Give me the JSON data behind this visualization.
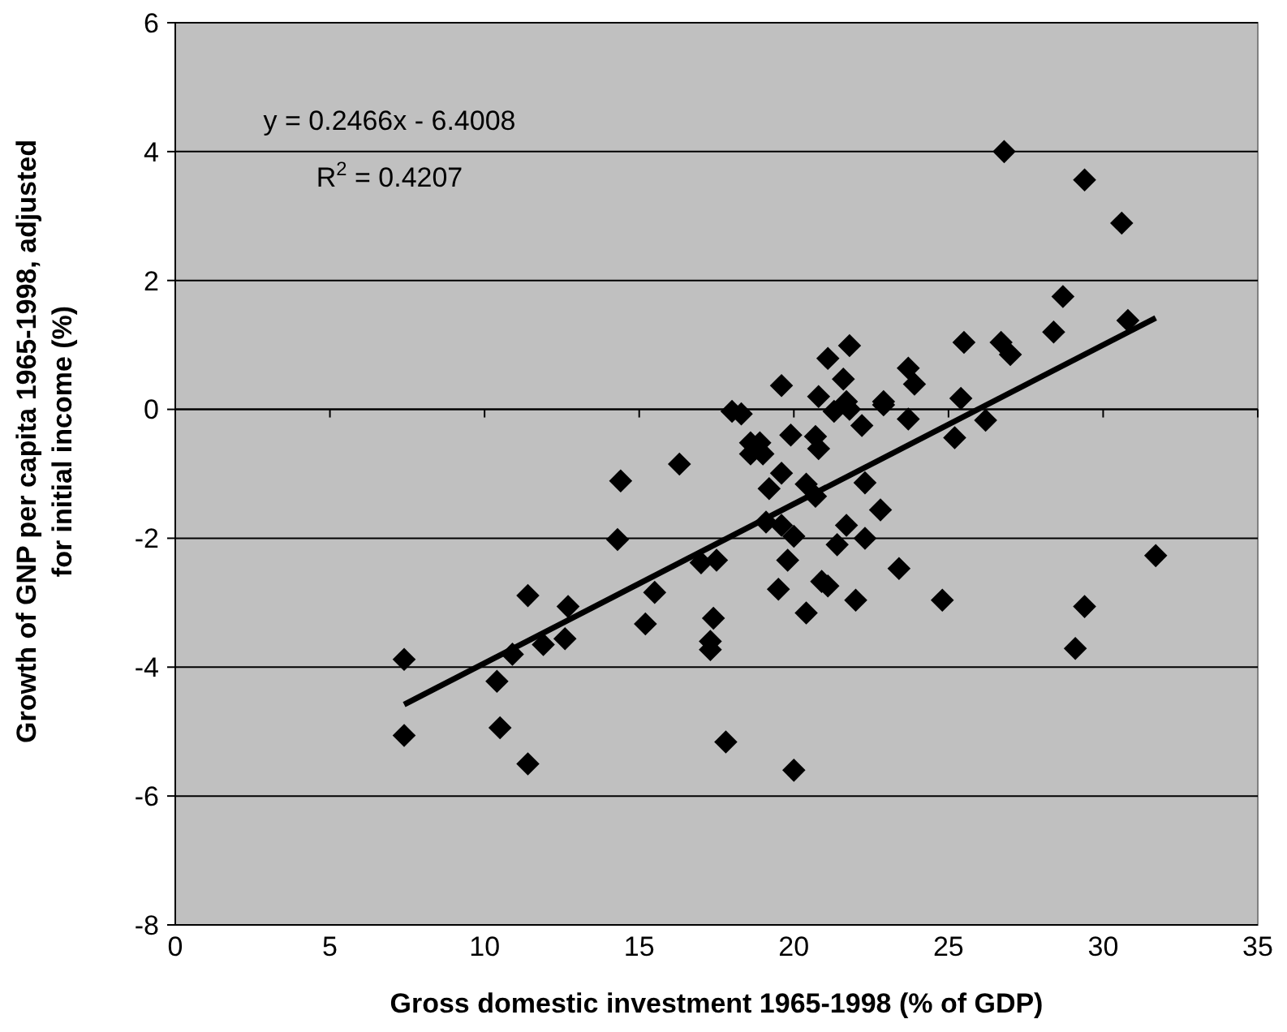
{
  "chart_data": {
    "type": "scatter",
    "xlabel": "Gross domestic investment 1965-1998 (% of GDP)",
    "ylabel": "Growth of GNP per capita 1965-1998, adjusted for initial income (%)",
    "xlim": [
      0,
      35
    ],
    "xticks": [
      0,
      5,
      10,
      15,
      20,
      25,
      30,
      35
    ],
    "ylim": [
      -8,
      6
    ],
    "yticks": [
      -8,
      -6,
      -4,
      -2,
      0,
      2,
      4,
      6
    ],
    "grid": "y",
    "marker": "diamond",
    "annotations": [
      "y = 0.2466x - 6.4008",
      "R$^{2}$ = 0.4207"
    ],
    "series": [
      {
        "color": "#000000",
        "x": [
          7.4,
          7.4,
          10.4,
          10.5,
          10.9,
          11.4,
          11.4,
          11.9,
          12.6,
          12.7,
          14.3,
          14.4,
          15.2,
          15.5,
          16.3,
          17.0,
          17.5,
          17.4,
          17.3,
          17.3,
          17.8,
          18.0,
          18.3,
          18.6,
          18.6,
          18.9,
          19.0,
          19.2,
          19.1,
          19.6,
          19.9,
          19.6,
          19.6,
          20.0,
          19.8,
          19.5,
          20.0,
          20.4,
          20.4,
          20.7,
          20.7,
          20.8,
          20.8,
          21.1,
          20.9,
          21.1,
          21.3,
          21.6,
          21.8,
          21.7,
          21.8,
          22.2,
          21.7,
          21.4,
          22.3,
          22.0,
          22.3,
          22.8,
          22.9,
          26.8,
          29.4,
          30.6,
          28.7,
          28.4,
          30.8,
          25.5,
          26.7,
          27.0,
          23.7,
          23.9,
          22.9,
          25.4,
          23.7,
          26.2,
          25.2,
          23.4,
          24.8,
          31.7,
          29.4,
          29.1
        ],
        "values": [
          -3.88,
          -5.06,
          -4.22,
          -4.94,
          -3.8,
          -2.89,
          -5.5,
          -3.65,
          -3.56,
          -3.06,
          -2.02,
          -1.11,
          -3.33,
          -2.84,
          -0.85,
          -2.38,
          -2.34,
          -3.24,
          -3.6,
          -3.73,
          -5.16,
          -0.03,
          -0.07,
          -0.52,
          -0.69,
          -0.52,
          -0.69,
          -1.23,
          -1.75,
          0.37,
          -0.4,
          -0.99,
          -1.8,
          -1.97,
          -2.34,
          -2.79,
          -5.6,
          -3.16,
          -1.16,
          -1.35,
          -0.42,
          -0.61,
          0.2,
          0.79,
          -2.67,
          -2.74,
          -0.03,
          0.47,
          0.99,
          0.12,
          0.0,
          -0.25,
          -1.8,
          -2.1,
          -2.0,
          -2.96,
          -1.14,
          -1.56,
          0.12,
          4.0,
          3.56,
          2.89,
          1.75,
          1.2,
          1.38,
          1.04,
          1.04,
          0.85,
          0.64,
          0.39,
          0.07,
          0.17,
          -0.15,
          -0.17,
          -0.44,
          -2.47,
          -2.96,
          -2.27,
          -3.06,
          -3.71
        ]
      },
      {
        "type": "line",
        "color": "#000000",
        "x": [
          7.4,
          31.7
        ],
        "values": [
          -4.58,
          1.42
        ],
        "marker": "none"
      }
    ]
  }
}
